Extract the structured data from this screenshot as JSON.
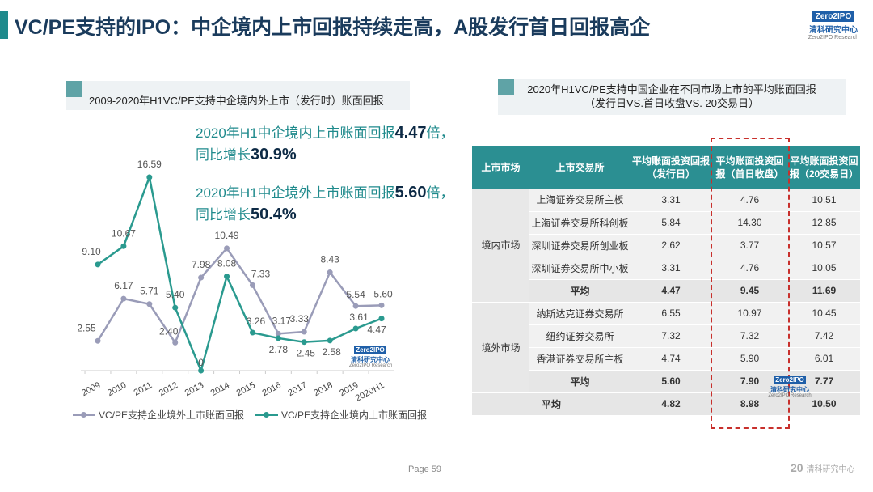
{
  "title": "VC/PE支持的IPO：中企境内上市回报持续走高，A股发行首日回报高企",
  "logo": {
    "box": "Zero2IPO",
    "cn": "清科研究中心",
    "en": "Zero2IPO Research"
  },
  "left": {
    "subtitle": "2009-2020年H1VC/PE支持中企境内外上市（发行时）账面回报",
    "h1a": "2020年H1中企境内上市账面回报",
    "h1b": "4.47",
    "h1c": "倍，",
    "h2a": "同比增长",
    "h2b": "30.9%",
    "h3a": "2020年H1中企境外上市账面回报",
    "h3b": "5.60",
    "h3c": "倍，",
    "h4a": "同比增长",
    "h4b": "50.4%"
  },
  "chart_data": {
    "type": "line",
    "title": "2009-2020年H1VC/PE支持中企境内外上市（发行时）账面回报",
    "categories": [
      "2009",
      "2010",
      "2011",
      "2012",
      "2013",
      "2014",
      "2015",
      "2016",
      "2017",
      "2018",
      "2019",
      "2020H1"
    ],
    "series": [
      {
        "name": "VC/PE支持企业境外上市账面回报",
        "color": "#9a9cb8",
        "values": [
          2.55,
          6.17,
          5.71,
          2.4,
          7.98,
          10.49,
          7.33,
          3.17,
          3.33,
          8.43,
          5.54,
          5.6
        ]
      },
      {
        "name": "VC/PE支持企业境内上市账面回报",
        "color": "#2a9a8f",
        "values": [
          9.1,
          10.67,
          16.59,
          5.4,
          0.0,
          8.08,
          3.26,
          2.78,
          2.45,
          2.58,
          3.61,
          4.47
        ]
      }
    ],
    "ylim": [
      0,
      17
    ],
    "legend": "bottom"
  },
  "right": {
    "subtitle1": "2020年H1VC/PE支持中国企业在不同市场上市的平均账面回报",
    "subtitle2": "（发行日VS.首日收盘VS. 20交易日）",
    "headers": [
      "上市市场",
      "上市交易所",
      "平均账面投资回报（发行日）",
      "平均账面投资回报（首日收盘）",
      "平均账面投资回报（20交易日）"
    ],
    "domestic": {
      "market": "境内市场",
      "rows": [
        [
          "上海证券交易所主板",
          "3.31",
          "4.76",
          "10.51"
        ],
        [
          "上海证券交易所科创板",
          "5.84",
          "14.30",
          "12.85"
        ],
        [
          "深圳证券交易所创业板",
          "2.62",
          "3.77",
          "10.57"
        ],
        [
          "深圳证券交易所中小板",
          "3.31",
          "4.76",
          "10.05"
        ]
      ],
      "avg": [
        "平均",
        "4.47",
        "9.45",
        "11.69"
      ]
    },
    "foreign": {
      "market": "境外市场",
      "rows": [
        [
          "纳斯达克证券交易所",
          "6.55",
          "10.97",
          "10.45"
        ],
        [
          "纽约证券交易所",
          "7.32",
          "7.32",
          "7.42"
        ],
        [
          "香港证券交易所主板",
          "4.74",
          "5.90",
          "6.01"
        ]
      ],
      "avg": [
        "平均",
        "5.60",
        "7.90",
        "7.77"
      ]
    },
    "total": [
      "平均",
      "4.82",
      "8.98",
      "10.50"
    ]
  },
  "footer": {
    "page": "Page  59",
    "brand": "20",
    "brand_text": "清科研究中心"
  }
}
